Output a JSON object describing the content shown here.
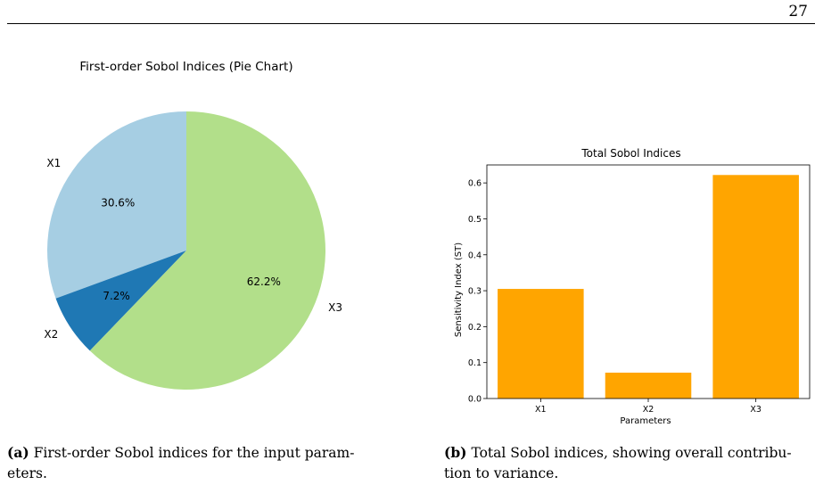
{
  "page": {
    "number": "27"
  },
  "chart_data": [
    {
      "type": "pie",
      "title": "First-order Sobol Indices (Pie Chart)",
      "labels": [
        "X1",
        "X2",
        "X3"
      ],
      "values": [
        30.6,
        7.2,
        62.2
      ],
      "value_labels": [
        "30.6%",
        "7.2%",
        "62.2%"
      ],
      "colors": [
        "#a6cee3",
        "#1f78b4",
        "#b2df8a"
      ],
      "start_angle": 90,
      "direction": "counterclockwise"
    },
    {
      "type": "bar",
      "title": "Total Sobol Indices",
      "categories": [
        "X1",
        "X2",
        "X3"
      ],
      "values": [
        0.305,
        0.072,
        0.622
      ],
      "xlabel": "Parameters",
      "ylabel": "Sensitivity Index (ST)",
      "ylim": [
        0,
        0.65
      ],
      "yticks": [
        "0.0",
        "0.1",
        "0.2",
        "0.3",
        "0.4",
        "0.5",
        "0.6"
      ],
      "color": "#ffa500",
      "grid": false
    }
  ],
  "captions": {
    "a": {
      "label": "(a)",
      "line1": "First-order Sobol indices for the input param-",
      "line2": "eters."
    },
    "b": {
      "label": "(b)",
      "line1": "Total Sobol indices, showing overall contribu-",
      "line2": "tion to variance."
    }
  }
}
